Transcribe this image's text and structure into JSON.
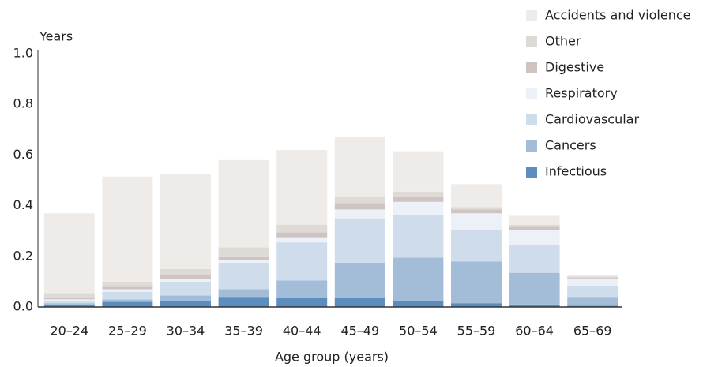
{
  "chart_data": {
    "type": "stacked-bar",
    "y_label": "Years",
    "x_label": "Age group (years)",
    "categories": [
      "20–24",
      "25–29",
      "30–34",
      "35–39",
      "40–44",
      "45–49",
      "50–54",
      "55–59",
      "60–64",
      "65–69"
    ],
    "series": [
      {
        "name": "Infectious",
        "color": "#5b8dbf",
        "values": [
          0.01,
          0.02,
          0.025,
          0.04,
          0.035,
          0.035,
          0.025,
          0.015,
          0.01,
          0.005
        ]
      },
      {
        "name": "Cancers",
        "color": "#a3bdd9",
        "values": [
          0.005,
          0.01,
          0.02,
          0.03,
          0.07,
          0.14,
          0.17,
          0.165,
          0.125,
          0.035
        ]
      },
      {
        "name": "Cardiovascular",
        "color": "#cfdcec",
        "values": [
          0.01,
          0.03,
          0.055,
          0.105,
          0.15,
          0.175,
          0.17,
          0.125,
          0.11,
          0.045
        ]
      },
      {
        "name": "Respiratory",
        "color": "#ecf1f7",
        "values": [
          0.005,
          0.01,
          0.01,
          0.01,
          0.02,
          0.035,
          0.05,
          0.065,
          0.06,
          0.025
        ]
      },
      {
        "name": "Digestive",
        "color": "#cfc4c2",
        "values": [
          0.005,
          0.01,
          0.015,
          0.015,
          0.02,
          0.025,
          0.02,
          0.015,
          0.015,
          0.005
        ]
      },
      {
        "name": "Other",
        "color": "#dedad6",
        "values": [
          0.02,
          0.02,
          0.025,
          0.035,
          0.03,
          0.025,
          0.02,
          0.01,
          0.005,
          0.005
        ]
      },
      {
        "name": "Accidents and violence",
        "color": "#efebe8",
        "values": [
          0.315,
          0.415,
          0.375,
          0.345,
          0.295,
          0.235,
          0.16,
          0.09,
          0.035,
          0.005
        ]
      }
    ],
    "ylim": [
      0,
      1
    ],
    "yticks": [
      {
        "value": 0,
        "label": "0.0"
      },
      0.2,
      0.4,
      0.6,
      0.8,
      {
        "value": 1,
        "label": "1.0"
      }
    ]
  }
}
